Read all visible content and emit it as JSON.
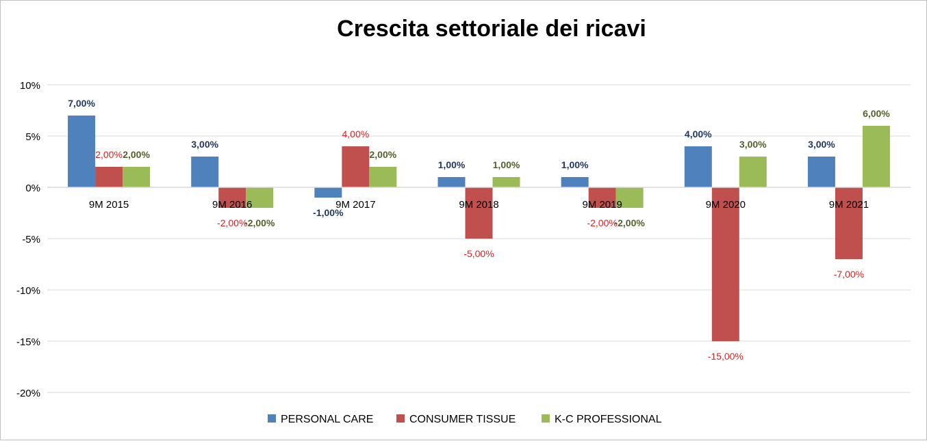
{
  "chart_data": {
    "type": "bar",
    "title": "Crescita settoriale dei ricavi",
    "categories": [
      "9M 2015",
      "9M 2016",
      "9M 2017",
      "9M 2018",
      "9M 2019",
      "9M 2020",
      "9M 2021"
    ],
    "series": [
      {
        "name": "PERSONAL CARE",
        "color": "#4f81bd",
        "label_color": "#1f3864",
        "values": [
          7,
          3,
          -1,
          1,
          1,
          4,
          3
        ],
        "labels": [
          "7,00%",
          "3,00%",
          "-1,00%",
          "1,00%",
          "1,00%",
          "4,00%",
          "3,00%"
        ]
      },
      {
        "name": "CONSUMER TISSUE",
        "color": "#c0504d",
        "label_color": "#e02020",
        "values": [
          2,
          -2,
          4,
          -5,
          -2,
          -15,
          -7
        ],
        "labels": [
          "2,00%",
          "-2,00%",
          "4,00%",
          "-5,00%",
          "-2,00%",
          "-15,00%",
          "-7,00%"
        ]
      },
      {
        "name": "K-C PROFESSIONAL",
        "color": "#9bbb59",
        "label_color": "#4f6228",
        "values": [
          2,
          -2,
          2,
          1,
          -2,
          3,
          6
        ],
        "labels": [
          "2,00%",
          "-2,00%",
          "2,00%",
          "1,00%",
          "-2,00%",
          "3,00%",
          "6,00%"
        ]
      }
    ],
    "y_ticks": [
      10,
      5,
      0,
      -5,
      -10,
      -15,
      -20
    ],
    "y_tick_labels": [
      "10%",
      "5%",
      "0%",
      "-5%",
      "-10%",
      "-15%",
      "-20%"
    ],
    "ylim": [
      -20,
      10
    ],
    "grid": true,
    "legend_position": "bottom"
  }
}
